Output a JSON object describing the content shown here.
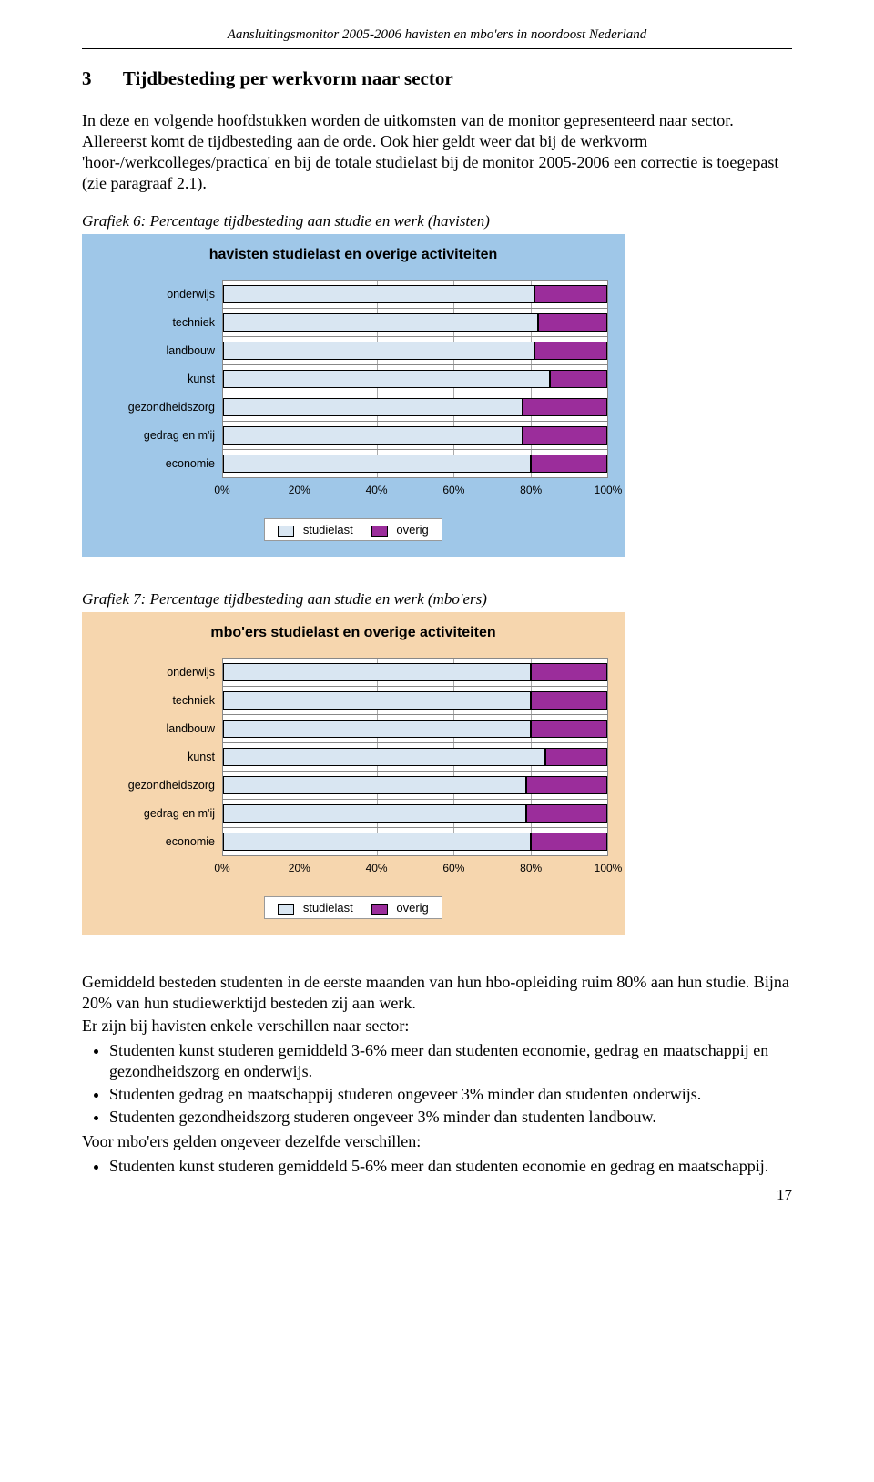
{
  "running_header": "Aansluitingsmonitor 2005-2006 havisten en mbo'ers in noordoost Nederland",
  "section": {
    "number": "3",
    "title": "Tijdbesteding per werkvorm naar sector"
  },
  "intro_p1": "In deze en volgende hoofdstukken worden de uitkomsten van de monitor gepresenteerd naar sector. Allereerst komt de tijdbesteding aan de orde. Ook hier geldt weer dat bij de werkvorm 'hoor-/werkcolleges/practica' en bij de totale studielast bij de monitor 2005-2006 een correctie is toegepast (zie paragraaf 2.1).",
  "chart6": {
    "caption": "Grafiek 6: Percentage tijdbesteding aan studie en werk (havisten)",
    "title": "havisten studielast en overige activiteiten",
    "type": "stacked_bar_horizontal",
    "background_color": "#9fc7e8",
    "series": [
      {
        "key": "studielast",
        "color": "#d9e6f2"
      },
      {
        "key": "overig",
        "color": "#9b2d9b"
      }
    ],
    "categories": [
      "onderwijs",
      "techniek",
      "landbouw",
      "kunst",
      "gezondheidszorg",
      "gedrag en m'ij",
      "economie"
    ],
    "values": {
      "studielast": [
        81,
        82,
        81,
        85,
        78,
        78,
        80
      ],
      "overig": [
        19,
        18,
        19,
        15,
        22,
        22,
        20
      ]
    },
    "xticks": [
      "0%",
      "20%",
      "40%",
      "60%",
      "80%",
      "100%"
    ],
    "xtick_pos": [
      0,
      20,
      40,
      60,
      80,
      100
    ],
    "legend": [
      "studielast",
      "overig"
    ]
  },
  "chart7": {
    "caption": "Grafiek 7: Percentage tijdbesteding aan studie en werk (mbo'ers)",
    "title": "mbo'ers studielast en overige activiteiten",
    "type": "stacked_bar_horizontal",
    "background_color": "#f6d6ae",
    "series": [
      {
        "key": "studielast",
        "color": "#d9e6f2"
      },
      {
        "key": "overig",
        "color": "#9b2d9b"
      }
    ],
    "categories": [
      "onderwijs",
      "techniek",
      "landbouw",
      "kunst",
      "gezondheidszorg",
      "gedrag en m'ij",
      "economie"
    ],
    "values": {
      "studielast": [
        80,
        80,
        80,
        84,
        79,
        79,
        80
      ],
      "overig": [
        20,
        20,
        20,
        16,
        21,
        21,
        20
      ]
    },
    "xticks": [
      "0%",
      "20%",
      "40%",
      "60%",
      "80%",
      "100%"
    ],
    "xtick_pos": [
      0,
      20,
      40,
      60,
      80,
      100
    ],
    "legend": [
      "studielast",
      "overig"
    ]
  },
  "conclusion": {
    "p1": "Gemiddeld besteden studenten in de eerste maanden van hun hbo-opleiding ruim 80% aan hun studie. Bijna 20% van hun studiewerktijd besteden zij aan werk.",
    "p2": "Er zijn bij havisten enkele verschillen naar sector:",
    "bullets1": [
      "Studenten kunst studeren gemiddeld 3-6% meer dan studenten economie, gedrag en maatschappij en gezondheidszorg en onderwijs.",
      "Studenten gedrag en maatschappij studeren ongeveer 3% minder dan studenten onderwijs.",
      "Studenten gezondheidszorg studeren ongeveer 3% minder dan studenten landbouw."
    ],
    "p3": "Voor mbo'ers gelden ongeveer dezelfde verschillen:",
    "bullets2": [
      "Studenten kunst studeren gemiddeld 5-6% meer dan studenten economie en gedrag en maatschappij."
    ]
  },
  "page_number": "17"
}
